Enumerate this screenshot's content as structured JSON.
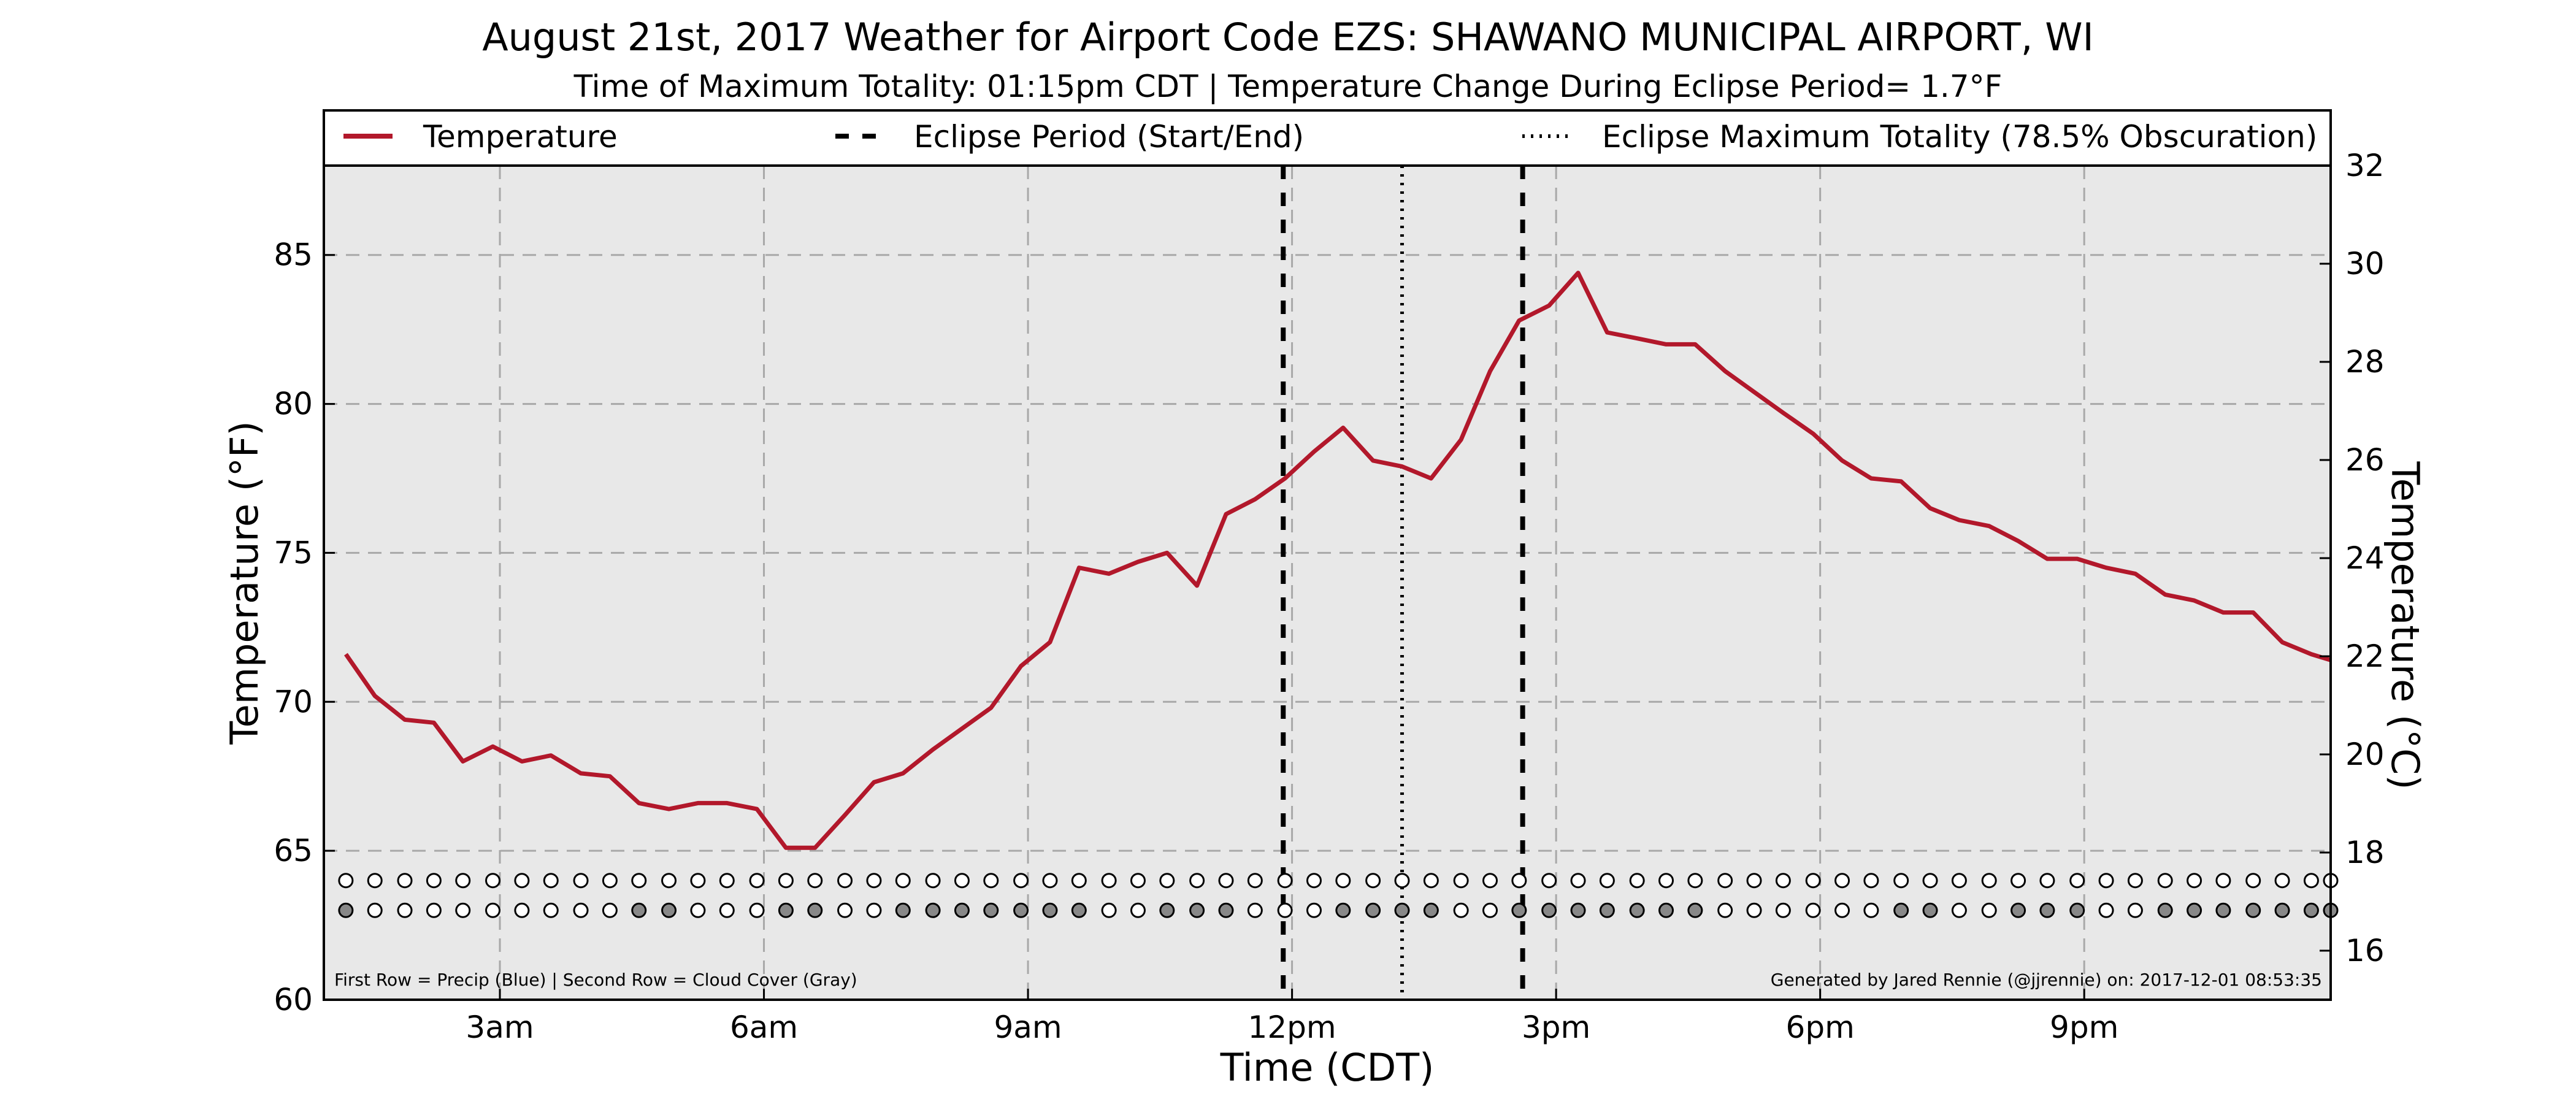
{
  "title": "August 21st, 2017 Weather for Airport Code EZS: SHAWANO MUNICIPAL AIRPORT, WI",
  "subtitle": "Time of Maximum Totality: 01:15pm CDT | Temperature Change During Eclipse Period= 1.7°F",
  "colors": {
    "temperature": "#b2182b",
    "plot_background": "#e8e8e8",
    "cloud_fill": "#888888",
    "precip_fill": "#ffffff"
  },
  "legend": {
    "placement": "top",
    "items": [
      {
        "label": "Temperature",
        "style": "solid"
      },
      {
        "label": "Eclipse Period (Start/End)",
        "style": "dashed"
      },
      {
        "label": "Eclipse Maximum Totality (78.5% Obscuration)",
        "style": "dotted"
      }
    ]
  },
  "notes": {
    "left": "First Row = Precip (Blue) | Second Row = Cloud Cover (Gray)",
    "right": "Generated by Jared Rennie (@jjrennie) on: 2017-12-01 08:53:35"
  },
  "chart_data": {
    "type": "line",
    "xlabel": "Time (CDT)",
    "ylabel": "Temperature (°F)",
    "ylabel_right": "Temperature (°C)",
    "x_unit": "hours (CDT)",
    "xlim": [
      1.0,
      23.8
    ],
    "ylim": [
      60,
      88
    ],
    "ylim_right": [
      15.0,
      32.0
    ],
    "x_ticks": [
      {
        "value": 3,
        "label": "3am"
      },
      {
        "value": 6,
        "label": "6am"
      },
      {
        "value": 9,
        "label": "9am"
      },
      {
        "value": 12,
        "label": "12pm"
      },
      {
        "value": 15,
        "label": "3pm"
      },
      {
        "value": 18,
        "label": "6pm"
      },
      {
        "value": 21,
        "label": "9pm"
      }
    ],
    "y_ticks": [
      60,
      65,
      70,
      75,
      80,
      85
    ],
    "y_ticks_right": [
      16,
      18,
      20,
      22,
      24,
      26,
      28,
      30,
      32
    ],
    "grid": true,
    "eclipse": {
      "start": 11.9,
      "end": 14.62,
      "max": 13.25
    },
    "series": [
      {
        "name": "Temperature",
        "x": [
          1.25,
          1.58,
          1.92,
          2.25,
          2.58,
          2.92,
          3.25,
          3.58,
          3.92,
          4.25,
          4.58,
          4.92,
          5.25,
          5.58,
          5.92,
          6.25,
          6.58,
          6.92,
          7.25,
          7.58,
          7.92,
          8.25,
          8.58,
          8.92,
          9.25,
          9.58,
          9.92,
          10.25,
          10.58,
          10.92,
          11.25,
          11.58,
          11.92,
          12.25,
          12.58,
          12.92,
          13.25,
          13.58,
          13.92,
          14.25,
          14.58,
          14.92,
          15.25,
          15.58,
          15.92,
          16.25,
          16.58,
          16.92,
          17.25,
          17.58,
          17.92,
          18.25,
          18.58,
          18.92,
          19.25,
          19.58,
          19.92,
          20.25,
          20.58,
          20.92,
          21.25,
          21.58,
          21.92,
          22.25,
          22.58,
          22.92,
          23.25,
          23.58,
          23.8
        ],
        "values": [
          71.6,
          70.2,
          69.4,
          69.3,
          68.0,
          68.5,
          68.0,
          68.2,
          67.6,
          67.5,
          66.6,
          66.4,
          66.6,
          66.6,
          66.4,
          65.1,
          65.1,
          66.2,
          67.3,
          67.6,
          68.4,
          69.1,
          69.8,
          71.2,
          72.0,
          74.5,
          74.3,
          74.7,
          75.0,
          73.9,
          76.3,
          76.8,
          77.5,
          78.4,
          79.2,
          78.1,
          77.9,
          77.5,
          78.8,
          81.1,
          82.8,
          83.3,
          84.4,
          82.4,
          82.2,
          82.0,
          82.0,
          81.1,
          80.4,
          79.7,
          79.0,
          78.1,
          77.5,
          77.4,
          76.5,
          76.1,
          75.9,
          75.4,
          74.8,
          74.8,
          74.5,
          74.3,
          73.6,
          73.4,
          73.0,
          73.0,
          72.0,
          71.6,
          71.4
        ]
      }
    ],
    "precip_row": {
      "level": 64.0,
      "x": [
        1.25,
        1.58,
        1.92,
        2.25,
        2.58,
        2.92,
        3.25,
        3.58,
        3.92,
        4.25,
        4.58,
        4.92,
        5.25,
        5.58,
        5.92,
        6.25,
        6.58,
        6.92,
        7.25,
        7.58,
        7.92,
        8.25,
        8.58,
        8.92,
        9.25,
        9.58,
        9.92,
        10.25,
        10.58,
        10.92,
        11.25,
        11.58,
        11.92,
        12.25,
        12.58,
        12.92,
        13.25,
        13.58,
        13.92,
        14.25,
        14.58,
        14.92,
        15.25,
        15.58,
        15.92,
        16.25,
        16.58,
        16.92,
        17.25,
        17.58,
        17.92,
        18.25,
        18.58,
        18.92,
        19.25,
        19.58,
        19.92,
        20.25,
        20.58,
        20.92,
        21.25,
        21.58,
        21.92,
        22.25,
        22.58,
        22.92,
        23.25,
        23.58,
        23.8
      ],
      "filled": [
        false,
        false,
        false,
        false,
        false,
        false,
        false,
        false,
        false,
        false,
        false,
        false,
        false,
        false,
        false,
        false,
        false,
        false,
        false,
        false,
        false,
        false,
        false,
        false,
        false,
        false,
        false,
        false,
        false,
        false,
        false,
        false,
        false,
        false,
        false,
        false,
        false,
        false,
        false,
        false,
        false,
        false,
        false,
        false,
        false,
        false,
        false,
        false,
        false,
        false,
        false,
        false,
        false,
        false,
        false,
        false,
        false,
        false,
        false,
        false,
        false,
        false,
        false,
        false,
        false,
        false,
        false,
        false,
        false
      ]
    },
    "cloud_row": {
      "level": 63.0,
      "x": [
        1.25,
        1.58,
        1.92,
        2.25,
        2.58,
        2.92,
        3.25,
        3.58,
        3.92,
        4.25,
        4.58,
        4.92,
        5.25,
        5.58,
        5.92,
        6.25,
        6.58,
        6.92,
        7.25,
        7.58,
        7.92,
        8.25,
        8.58,
        8.92,
        9.25,
        9.58,
        9.92,
        10.25,
        10.58,
        10.92,
        11.25,
        11.58,
        11.92,
        12.25,
        12.58,
        12.92,
        13.25,
        13.58,
        13.92,
        14.25,
        14.58,
        14.92,
        15.25,
        15.58,
        15.92,
        16.25,
        16.58,
        16.92,
        17.25,
        17.58,
        17.92,
        18.25,
        18.58,
        18.92,
        19.25,
        19.58,
        19.92,
        20.25,
        20.58,
        20.92,
        21.25,
        21.58,
        21.92,
        22.25,
        22.58,
        22.92,
        23.25,
        23.58,
        23.8
      ],
      "filled": [
        true,
        false,
        false,
        false,
        false,
        false,
        false,
        false,
        false,
        false,
        true,
        true,
        false,
        false,
        false,
        true,
        true,
        false,
        false,
        true,
        true,
        true,
        true,
        true,
        true,
        true,
        false,
        false,
        true,
        true,
        true,
        false,
        false,
        false,
        true,
        true,
        true,
        true,
        false,
        false,
        true,
        true,
        true,
        true,
        true,
        true,
        true,
        false,
        false,
        false,
        false,
        false,
        false,
        true,
        true,
        false,
        false,
        true,
        true,
        true,
        false,
        false,
        true,
        true,
        true,
        true,
        true,
        true,
        true
      ]
    }
  }
}
